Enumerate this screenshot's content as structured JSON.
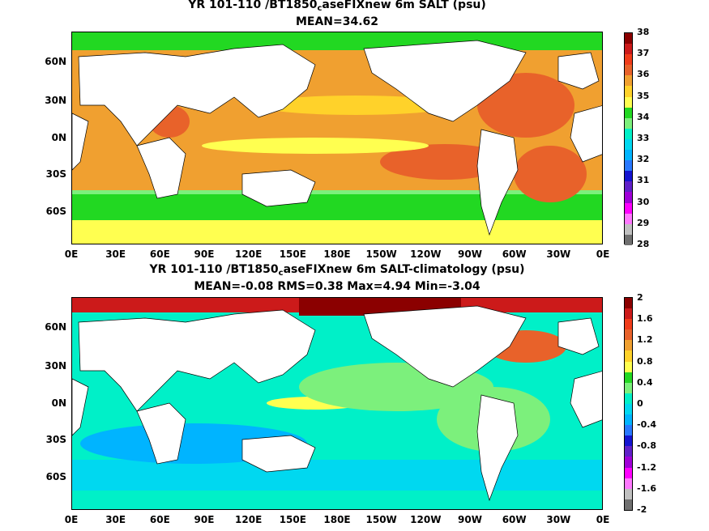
{
  "map1": {
    "title_pre": "YR 101-110 /BT1850",
    "title_sub": "c",
    "title_post": "aseFIXnew 6m SALT (psu)",
    "subtitle": "MEAN=34.62",
    "colorbar_labels": [
      "38",
      "37",
      "36",
      "35",
      "34",
      "33",
      "32",
      "31",
      "30",
      "29",
      "28"
    ],
    "colorbar_colors": [
      "#8b0000",
      "#cc1a1a",
      "#f03c1a",
      "#e8622a",
      "#f0a030",
      "#ffd22a",
      "#ffff50",
      "#22d822",
      "#7cf07c",
      "#00f0c8",
      "#00d8f0",
      "#00b4ff",
      "#2878ff",
      "#1414d0",
      "#6020c8",
      "#a000d8",
      "#ff00ff",
      "#ff78ff",
      "#c0c0c0",
      "#707070"
    ]
  },
  "map2": {
    "title_pre": "YR 101-110 /BT1850",
    "title_sub": "c",
    "title_post": "aseFIXnew 6m SALT-climatology (psu)",
    "subtitle": "MEAN=-0.08   RMS=0.38   Max=4.94   Min=-3.04",
    "colorbar_labels": [
      "2",
      "1.6",
      "1.2",
      "0.8",
      "0.4",
      "0",
      "-0.4",
      "-0.8",
      "-1.2",
      "-1.6",
      "-2"
    ],
    "colorbar_colors": [
      "#8b0000",
      "#cc1a1a",
      "#f03c1a",
      "#e8622a",
      "#f0a030",
      "#ffd22a",
      "#ffff50",
      "#22d822",
      "#7cf07c",
      "#00f0c8",
      "#00d8f0",
      "#00b4ff",
      "#2878ff",
      "#1414d0",
      "#6020c8",
      "#a000d8",
      "#ff00ff",
      "#ff78ff",
      "#c0c0c0",
      "#707070"
    ]
  },
  "axes": {
    "lat_labels": [
      "60N",
      "30N",
      "0N",
      "30S",
      "60S"
    ],
    "lon_labels": [
      "0E",
      "30E",
      "60E",
      "90E",
      "120E",
      "150E",
      "180E",
      "150W",
      "120W",
      "90W",
      "60W",
      "30W",
      "0E"
    ]
  }
}
